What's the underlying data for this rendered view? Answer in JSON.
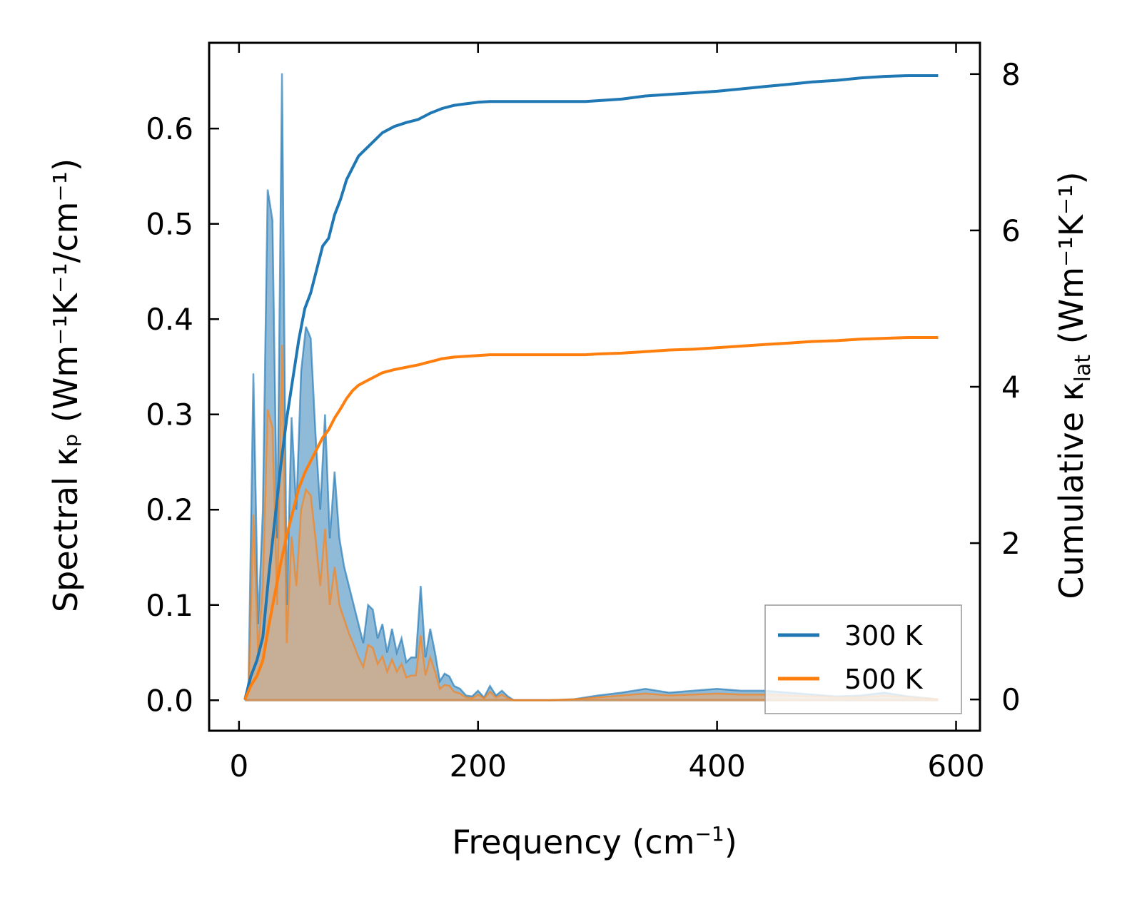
{
  "chart_data": {
    "type": "line",
    "x_label_main": "Frequency (cm",
    "x_label_sup": "−1",
    "x_label_end": ")",
    "y_left_label": "Spectral κₚ (Wm⁻¹K⁻¹/cm⁻¹)",
    "y_right_label": "Cumulative κ",
    "y_right_label_sub": "lat",
    "y_right_label_end": " (Wm⁻¹K⁻¹)",
    "xlim": [
      -25,
      620
    ],
    "ylim_left": [
      -0.032,
      0.69
    ],
    "ylim_right": [
      -0.4,
      8.4
    ],
    "x_ticks": [
      0,
      200,
      400,
      600
    ],
    "x_tick_labels": [
      "0",
      "200",
      "400",
      "600"
    ],
    "y_left_ticks": [
      0.0,
      0.1,
      0.2,
      0.3,
      0.4,
      0.5,
      0.6
    ],
    "y_left_tick_labels": [
      "0.0",
      "0.1",
      "0.2",
      "0.3",
      "0.4",
      "0.5",
      "0.6"
    ],
    "y_right_ticks": [
      0,
      2,
      4,
      6,
      8
    ],
    "y_right_tick_labels": [
      "0",
      "2",
      "4",
      "6",
      "8"
    ],
    "legend_position": "lower-right",
    "series": [
      {
        "name": "300 K",
        "color": "#1f77b4",
        "fill_color": "#1f77b4",
        "spectral": {
          "x": [
            5,
            8,
            12,
            16,
            20,
            24,
            28,
            32,
            36,
            40,
            44,
            48,
            52,
            56,
            60,
            64,
            68,
            72,
            76,
            80,
            84,
            88,
            92,
            96,
            100,
            104,
            108,
            112,
            116,
            120,
            124,
            128,
            132,
            136,
            140,
            144,
            148,
            152,
            156,
            160,
            164,
            168,
            172,
            176,
            180,
            185,
            190,
            195,
            200,
            205,
            210,
            215,
            220,
            225,
            230,
            240,
            260,
            280,
            300,
            320,
            340,
            360,
            380,
            400,
            420,
            440,
            460,
            480,
            500,
            520,
            540,
            560,
            585
          ],
          "y": [
            0.0,
            0.02,
            0.343,
            0.08,
            0.2,
            0.536,
            0.504,
            0.17,
            0.658,
            0.1,
            0.297,
            0.2,
            0.345,
            0.392,
            0.38,
            0.28,
            0.2,
            0.3,
            0.17,
            0.24,
            0.17,
            0.14,
            0.12,
            0.1,
            0.08,
            0.06,
            0.1,
            0.095,
            0.065,
            0.08,
            0.05,
            0.075,
            0.05,
            0.065,
            0.04,
            0.045,
            0.045,
            0.12,
            0.045,
            0.075,
            0.05,
            0.02,
            0.028,
            0.025,
            0.015,
            0.012,
            0.005,
            0.004,
            0.01,
            0.003,
            0.015,
            0.005,
            0.01,
            0.004,
            0.0,
            0.0,
            0.0,
            0.001,
            0.005,
            0.008,
            0.012,
            0.008,
            0.01,
            0.012,
            0.01,
            0.01,
            0.008,
            0.006,
            0.004,
            0.005,
            0.008,
            0.004,
            0.001
          ]
        },
        "cumulative": {
          "x": [
            5,
            10,
            15,
            20,
            25,
            30,
            35,
            40,
            45,
            50,
            55,
            60,
            65,
            70,
            75,
            80,
            85,
            90,
            95,
            100,
            110,
            120,
            130,
            140,
            150,
            155,
            160,
            165,
            170,
            180,
            190,
            200,
            210,
            220,
            230,
            250,
            270,
            290,
            300,
            320,
            340,
            360,
            380,
            400,
            420,
            440,
            460,
            480,
            500,
            520,
            540,
            560,
            585
          ],
          "y": [
            0.0,
            0.3,
            0.5,
            0.8,
            1.6,
            2.3,
            3.0,
            3.6,
            4.1,
            4.6,
            5.0,
            5.2,
            5.5,
            5.8,
            5.9,
            6.2,
            6.4,
            6.65,
            6.8,
            6.95,
            7.1,
            7.25,
            7.33,
            7.38,
            7.42,
            7.46,
            7.5,
            7.53,
            7.56,
            7.6,
            7.62,
            7.64,
            7.65,
            7.65,
            7.65,
            7.65,
            7.65,
            7.65,
            7.66,
            7.68,
            7.72,
            7.74,
            7.76,
            7.78,
            7.81,
            7.84,
            7.87,
            7.9,
            7.92,
            7.95,
            7.97,
            7.98,
            7.98
          ]
        }
      },
      {
        "name": "500 K",
        "color": "#ff7f0e",
        "fill_color": "#f4a460",
        "spectral": {
          "x": [
            5,
            8,
            12,
            16,
            20,
            24,
            28,
            32,
            36,
            40,
            44,
            48,
            52,
            56,
            60,
            64,
            68,
            72,
            76,
            80,
            84,
            88,
            92,
            96,
            100,
            104,
            108,
            112,
            116,
            120,
            124,
            128,
            132,
            136,
            140,
            144,
            148,
            152,
            156,
            160,
            164,
            168,
            172,
            176,
            180,
            185,
            190,
            195,
            200,
            205,
            210,
            215,
            220,
            225,
            230,
            240,
            260,
            280,
            300,
            320,
            340,
            360,
            380,
            400,
            420,
            440,
            460,
            480,
            500,
            520,
            540,
            560,
            585
          ],
          "y": [
            0.0,
            0.01,
            0.195,
            0.05,
            0.12,
            0.305,
            0.286,
            0.1,
            0.373,
            0.06,
            0.172,
            0.12,
            0.2,
            0.221,
            0.215,
            0.17,
            0.12,
            0.18,
            0.1,
            0.14,
            0.1,
            0.085,
            0.07,
            0.058,
            0.045,
            0.035,
            0.058,
            0.055,
            0.038,
            0.046,
            0.03,
            0.043,
            0.03,
            0.038,
            0.024,
            0.026,
            0.026,
            0.068,
            0.026,
            0.045,
            0.03,
            0.012,
            0.016,
            0.015,
            0.009,
            0.007,
            0.003,
            0.002,
            0.006,
            0.002,
            0.009,
            0.003,
            0.006,
            0.002,
            0.0,
            0.0,
            0.0,
            0.001,
            0.003,
            0.005,
            0.007,
            0.005,
            0.006,
            0.007,
            0.006,
            0.006,
            0.005,
            0.004,
            0.003,
            0.003,
            0.005,
            0.003,
            0.001
          ]
        },
        "cumulative": {
          "x": [
            5,
            10,
            15,
            20,
            25,
            30,
            35,
            40,
            45,
            50,
            55,
            60,
            65,
            70,
            75,
            80,
            85,
            90,
            95,
            100,
            110,
            120,
            130,
            140,
            150,
            155,
            160,
            165,
            170,
            180,
            190,
            200,
            210,
            220,
            230,
            250,
            270,
            290,
            300,
            320,
            340,
            360,
            380,
            400,
            420,
            440,
            460,
            480,
            500,
            520,
            540,
            560,
            585
          ],
          "y": [
            0.0,
            0.18,
            0.3,
            0.5,
            0.95,
            1.35,
            1.75,
            2.1,
            2.4,
            2.7,
            2.9,
            3.05,
            3.2,
            3.35,
            3.45,
            3.6,
            3.72,
            3.85,
            3.95,
            4.02,
            4.1,
            4.18,
            4.22,
            4.25,
            4.28,
            4.3,
            4.32,
            4.34,
            4.36,
            4.38,
            4.39,
            4.4,
            4.41,
            4.41,
            4.41,
            4.41,
            4.41,
            4.41,
            4.42,
            4.43,
            4.45,
            4.47,
            4.48,
            4.5,
            4.52,
            4.54,
            4.56,
            4.58,
            4.59,
            4.61,
            4.62,
            4.63,
            4.63
          ]
        }
      }
    ]
  }
}
